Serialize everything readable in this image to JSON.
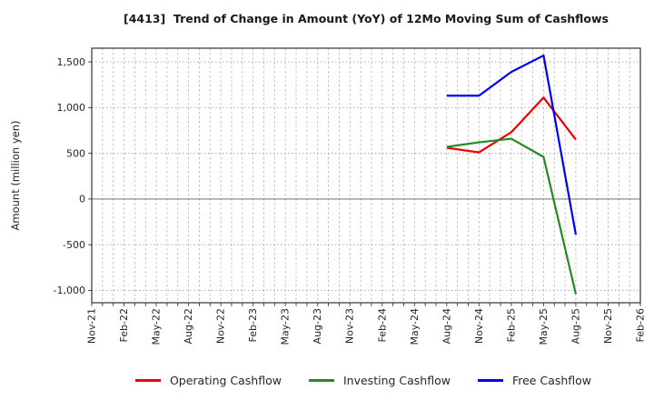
{
  "chart_data": {
    "type": "line",
    "title": "[4413]  Trend of Change in Amount (YoY) of 12Mo Moving Sum of Cashflows",
    "ylabel": "Amount (million yen)",
    "x_tick_labels": [
      "Nov-21",
      "Feb-22",
      "May-22",
      "Aug-22",
      "Nov-22",
      "Feb-23",
      "May-23",
      "Aug-23",
      "Nov-23",
      "Feb-24",
      "May-24",
      "Aug-24",
      "Nov-24",
      "Feb-25",
      "May-25",
      "Aug-25",
      "Nov-25",
      "Feb-26"
    ],
    "months_total": 51,
    "y_ticks": [
      1500,
      1000,
      500,
      0,
      -500,
      -1000
    ],
    "y_tick_labels": [
      "1,500",
      "1,000",
      "500",
      "0",
      "-500",
      "-1,000"
    ],
    "ylim": [
      -1135,
      1650
    ],
    "grid": true,
    "legend_position": "bottom",
    "x_points": [
      "Aug-24",
      "Nov-24",
      "Feb-25",
      "May-25",
      "Aug-25"
    ],
    "x_point_month_indices": [
      33,
      36,
      39,
      42,
      45
    ],
    "series": [
      {
        "name": "Operating Cashflow",
        "color": "#ee0000",
        "values": [
          560,
          510,
          730,
          1110,
          650
        ]
      },
      {
        "name": "Investing Cashflow",
        "color": "#228b22",
        "values": [
          570,
          620,
          660,
          460,
          -1040
        ]
      },
      {
        "name": "Free Cashflow",
        "color": "#0000ee",
        "values": [
          1130,
          1130,
          1390,
          1570,
          -390
        ]
      }
    ],
    "colors": {
      "zero_line": "#808080",
      "grid_line": "#b3b3b3",
      "spine": "#333333",
      "text": "#262626"
    }
  }
}
